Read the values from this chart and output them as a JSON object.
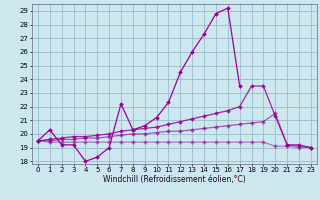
{
  "xlabel": "Windchill (Refroidissement éolien,°C)",
  "bg_color": "#cce8ee",
  "grid_color": "#99bbcc",
  "line_color": "#990099",
  "xlim": [
    -0.5,
    23.5
  ],
  "ylim": [
    17.8,
    29.5
  ],
  "yticks": [
    18,
    19,
    20,
    21,
    22,
    23,
    24,
    25,
    26,
    27,
    28,
    29
  ],
  "xticks": [
    0,
    1,
    2,
    3,
    4,
    5,
    6,
    7,
    8,
    9,
    10,
    11,
    12,
    13,
    14,
    15,
    16,
    17,
    18,
    19,
    20,
    21,
    22,
    23
  ],
  "line1_x": [
    0,
    1,
    2,
    3,
    4,
    5,
    6,
    7,
    8,
    9,
    10,
    11,
    12,
    13,
    14,
    15,
    16,
    17
  ],
  "line1_y": [
    19.5,
    20.3,
    19.2,
    19.2,
    18.0,
    18.3,
    19.0,
    22.2,
    20.3,
    20.6,
    21.2,
    22.3,
    24.5,
    26.0,
    27.3,
    28.8,
    29.2,
    23.5
  ],
  "line2_x": [
    0,
    1,
    2,
    3,
    4,
    5,
    6,
    7,
    8,
    9,
    10,
    11,
    12,
    13,
    14,
    15,
    16,
    17,
    18,
    19,
    20,
    21,
    22,
    23
  ],
  "line2_y": [
    19.5,
    19.6,
    19.7,
    19.8,
    19.8,
    19.9,
    20.0,
    20.2,
    20.3,
    20.4,
    20.5,
    20.7,
    20.9,
    21.1,
    21.3,
    21.5,
    21.7,
    22.0,
    23.5,
    23.5,
    21.3,
    19.2,
    19.2,
    19.0
  ],
  "line3_x": [
    0,
    1,
    2,
    3,
    4,
    5,
    6,
    7,
    8,
    9,
    10,
    11,
    12,
    13,
    14,
    15,
    16,
    17,
    18,
    19,
    20,
    21,
    22,
    23
  ],
  "line3_y": [
    19.5,
    19.5,
    19.6,
    19.6,
    19.7,
    19.7,
    19.8,
    19.9,
    20.0,
    20.0,
    20.1,
    20.2,
    20.2,
    20.3,
    20.4,
    20.5,
    20.6,
    20.7,
    20.8,
    20.9,
    21.5,
    19.2,
    19.1,
    19.0
  ],
  "line4_x": [
    0,
    1,
    2,
    3,
    4,
    5,
    6,
    7,
    8,
    9,
    10,
    11,
    12,
    13,
    14,
    15,
    16,
    17,
    18,
    19,
    20,
    21,
    22,
    23
  ],
  "line4_y": [
    19.5,
    19.4,
    19.4,
    19.4,
    19.4,
    19.4,
    19.4,
    19.4,
    19.4,
    19.4,
    19.4,
    19.4,
    19.4,
    19.4,
    19.4,
    19.4,
    19.4,
    19.4,
    19.4,
    19.4,
    19.1,
    19.1,
    19.0,
    19.0
  ]
}
